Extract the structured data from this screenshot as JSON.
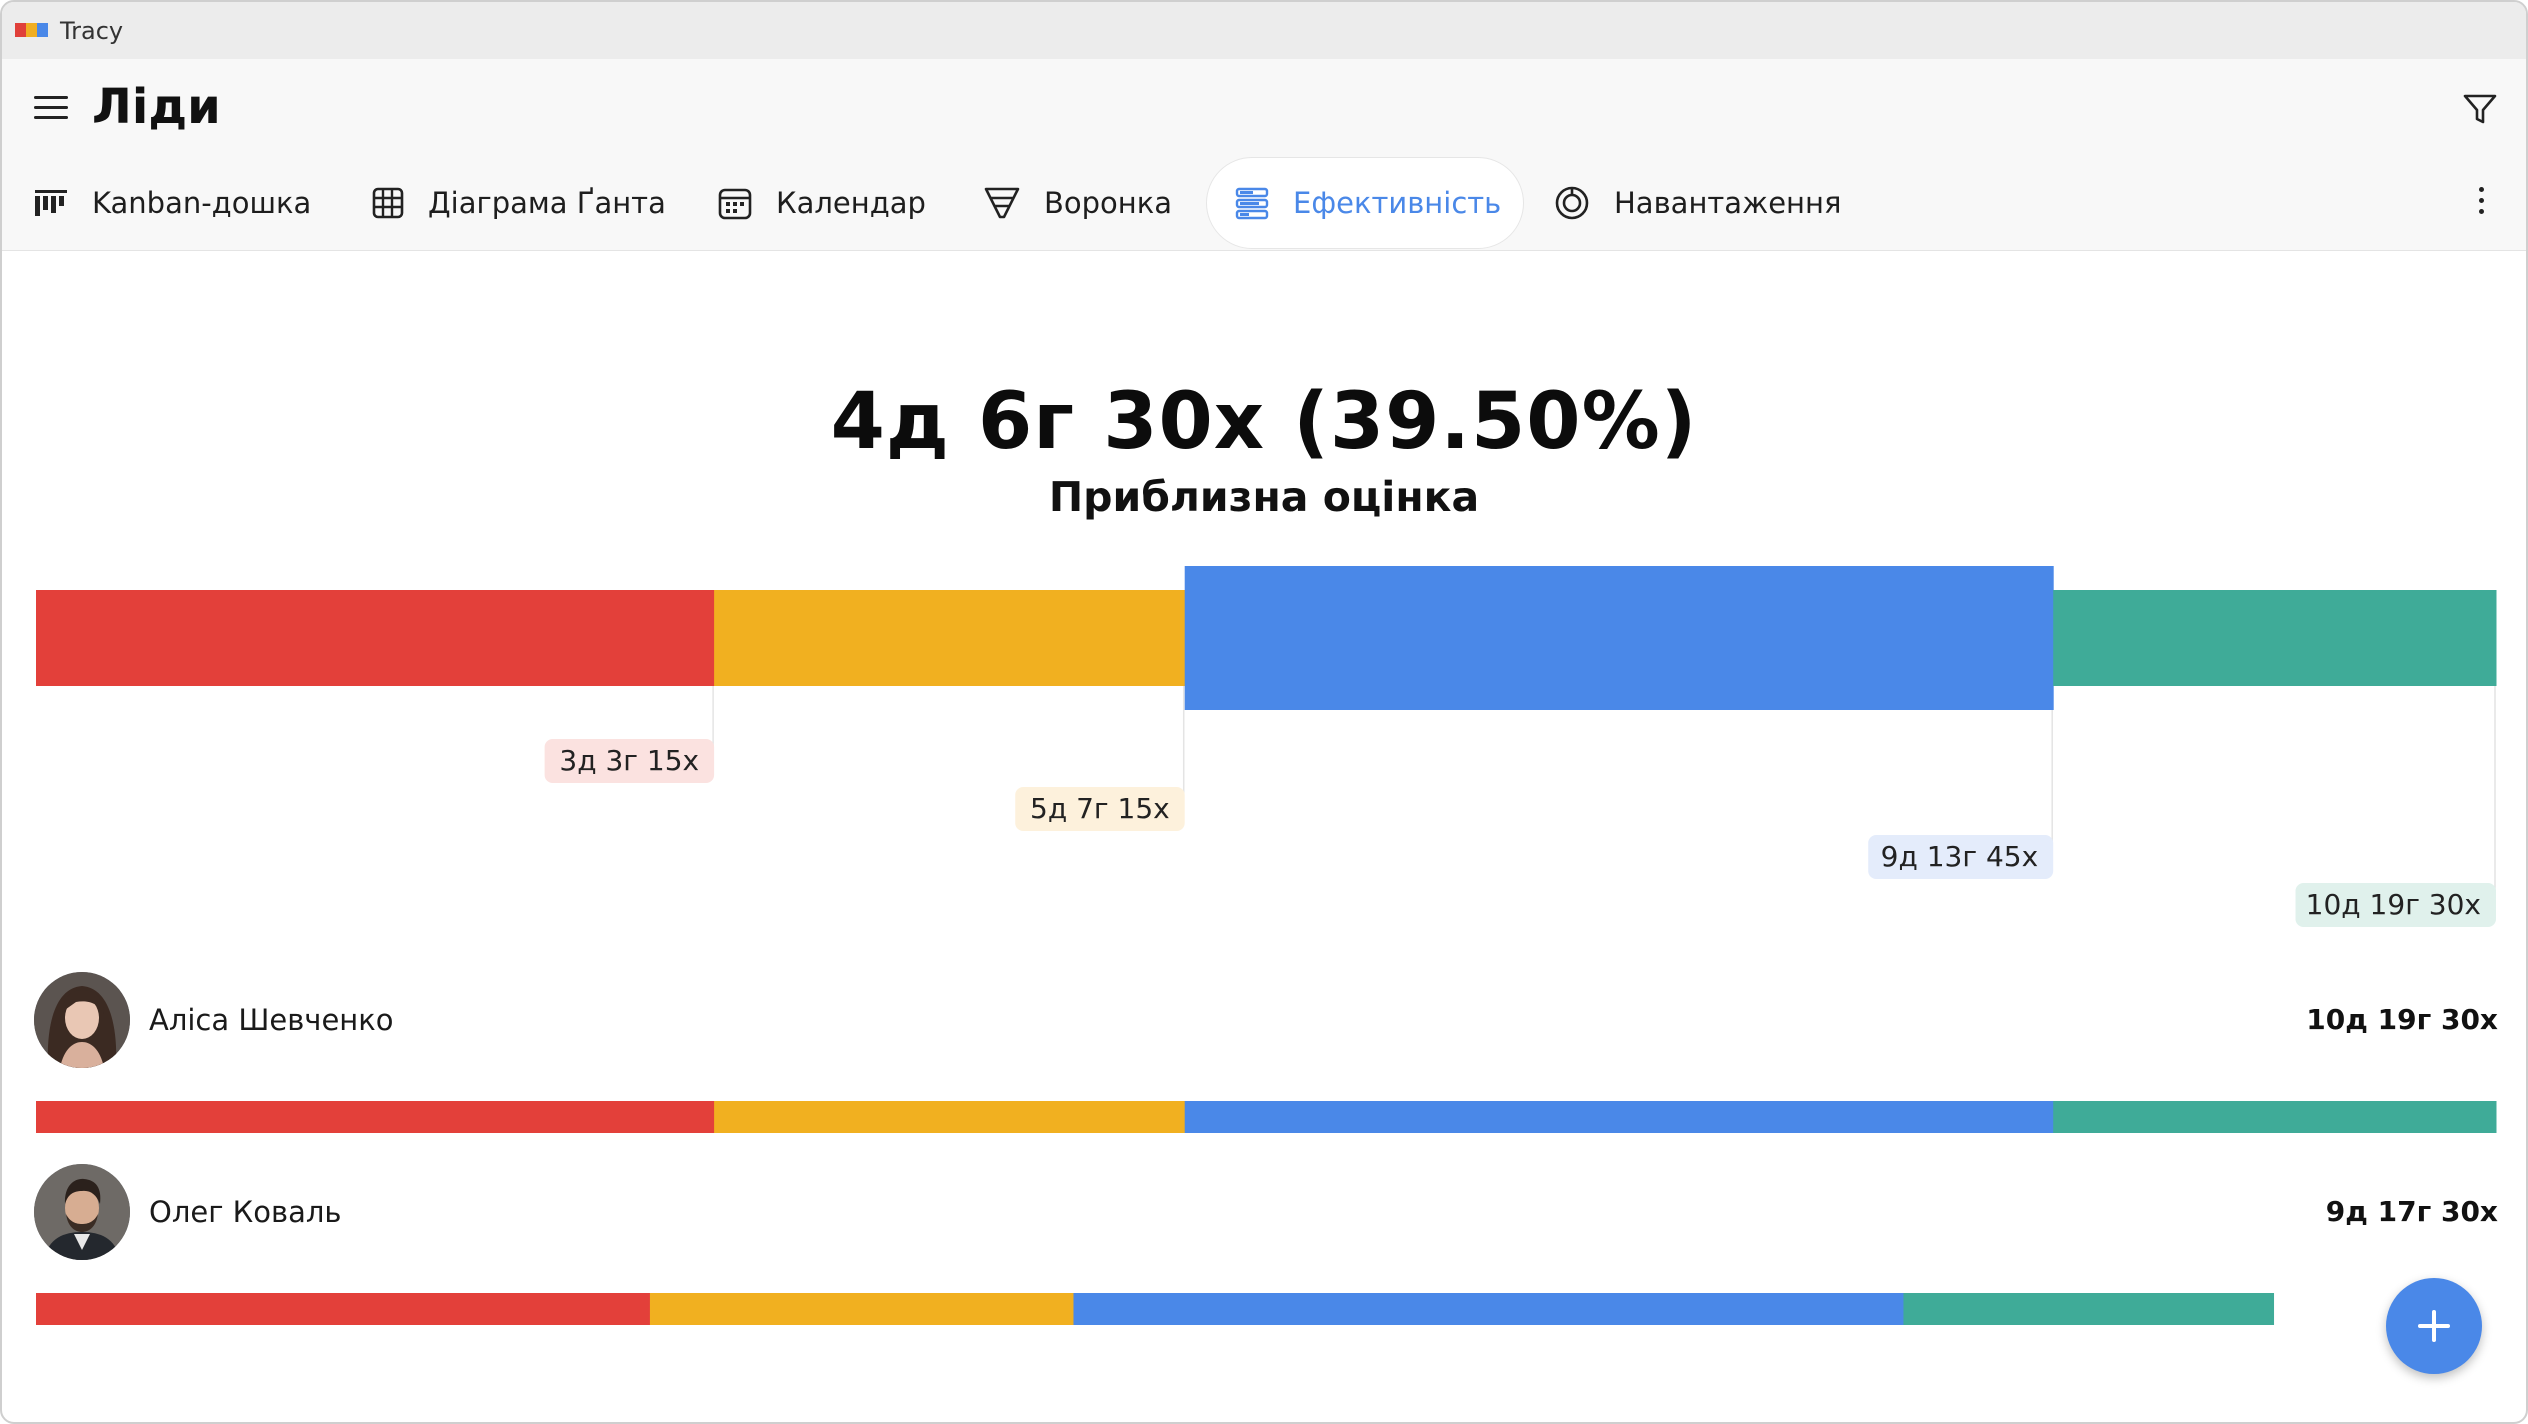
{
  "window": {
    "title": "Tracy",
    "logo_colors": [
      "#e0403a",
      "#f0ae22",
      "#4a88e8"
    ]
  },
  "header": {
    "title": "Ліди",
    "menu_icon": "hamburger-icon",
    "filter_icon": "filter-icon",
    "more_icon": "more-vertical-icon"
  },
  "tabs": [
    {
      "label": "Kanban-дошка",
      "icon": "kanban-icon",
      "active": false
    },
    {
      "label": "Діаграма Ґанта",
      "icon": "gantt-icon",
      "active": false
    },
    {
      "label": "Календар",
      "icon": "calendar-icon",
      "active": false
    },
    {
      "label": "Воронка",
      "icon": "funnel-icon",
      "active": false
    },
    {
      "label": "Ефективність",
      "icon": "efficiency-icon",
      "active": true
    },
    {
      "label": "Навантаження",
      "icon": "workload-icon",
      "active": false
    }
  ],
  "summary": {
    "value": "4д 6г 30х (39.50%)",
    "label": "Приблизна оцінка"
  },
  "chart_data": {
    "type": "bar",
    "orientation": "horizontal-stacked",
    "unit": "minutes",
    "colors": [
      "#e3403a",
      "#f1b020",
      "#4a88e8",
      "#3fab98"
    ],
    "highlight_index": 2,
    "overall": {
      "values": [
        4755,
        3300,
        6090,
        3105
      ],
      "cumulative_labels": [
        "3д 3г 15х",
        "5д 7г 15х",
        "9д 13г 45х",
        "10д 19г 30х"
      ],
      "label_backgrounds": [
        "#fbe2e0",
        "#fdf1dc",
        "#e4ecfb",
        "#e0f1ec"
      ]
    },
    "people": [
      {
        "name": "Аліса Шевченко",
        "total": "10д 19г 30х",
        "values": [
          4755,
          3300,
          6090,
          3105
        ]
      },
      {
        "name": "Олег Коваль",
        "total": "9д 17г 30х",
        "values": [
          4305,
          2970,
          5820,
          2595
        ]
      }
    ]
  },
  "fab": {
    "icon": "plus-icon"
  }
}
